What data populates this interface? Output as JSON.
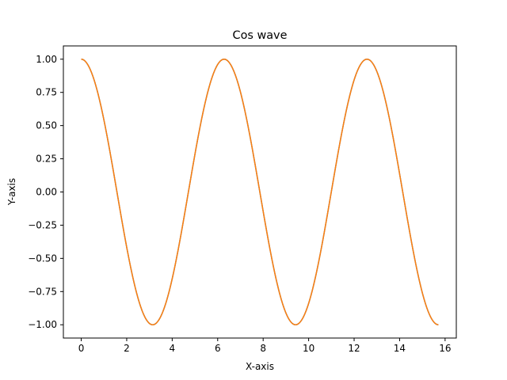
{
  "chart_data": {
    "type": "line",
    "title": "Cos wave",
    "xlabel": "X-axis",
    "ylabel": "Y-axis",
    "xlim": [
      -0.785,
      16.493
    ],
    "ylim": [
      -1.1,
      1.1
    ],
    "xticks": [
      0,
      2,
      4,
      6,
      8,
      10,
      12,
      14,
      16
    ],
    "xtick_labels": [
      "0",
      "2",
      "4",
      "6",
      "8",
      "10",
      "12",
      "14",
      "16"
    ],
    "yticks": [
      -1.0,
      -0.75,
      -0.5,
      -0.25,
      0.0,
      0.25,
      0.5,
      0.75,
      1.0
    ],
    "ytick_labels": [
      "−1.00",
      "−0.75",
      "−0.50",
      "−0.25",
      "0.00",
      "0.25",
      "0.50",
      "0.75",
      "1.00"
    ],
    "grid": false,
    "function": "cos",
    "x_range": [
      0,
      15.708
    ],
    "series": [
      {
        "color": "#1f77b4"
      },
      {
        "color": "#ff7f0e"
      }
    ]
  }
}
